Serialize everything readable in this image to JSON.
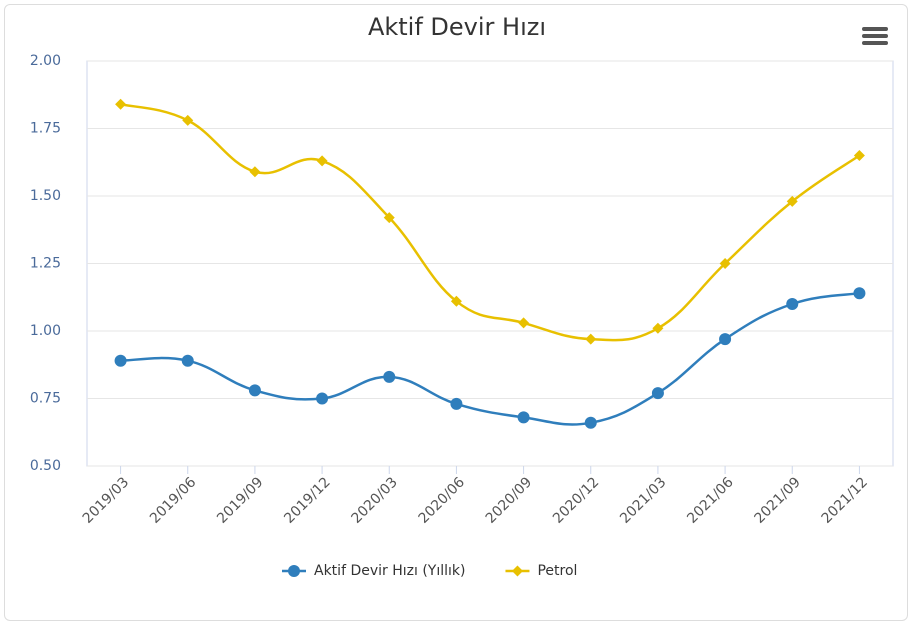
{
  "chart_data": {
    "type": "line",
    "title": "Aktif Devir Hızı",
    "categories": [
      "2019/03",
      "2019/06",
      "2019/09",
      "2019/12",
      "2020/03",
      "2020/06",
      "2020/09",
      "2020/12",
      "2021/03",
      "2021/06",
      "2021/09",
      "2021/12"
    ],
    "series": [
      {
        "name": "Aktif Devir Hızı (Yıllık)",
        "color": "#2f7ebc",
        "values": [
          0.89,
          0.89,
          0.78,
          0.75,
          0.83,
          0.73,
          0.68,
          0.66,
          0.77,
          0.97,
          1.1,
          1.14
        ]
      },
      {
        "name": "Petrol",
        "color": "#e8c000",
        "values": [
          1.84,
          1.78,
          1.59,
          1.63,
          1.42,
          1.11,
          1.03,
          0.97,
          1.01,
          1.25,
          1.48,
          1.65
        ]
      }
    ],
    "ylim": [
      0.5,
      2.0
    ],
    "yticks": [
      {
        "value": 0.5,
        "label": "0.50"
      },
      {
        "value": 0.75,
        "label": "0.75"
      },
      {
        "value": 1.0,
        "label": "1.00"
      },
      {
        "value": 1.25,
        "label": "1.25"
      },
      {
        "value": 1.5,
        "label": "1.50"
      },
      {
        "value": 1.75,
        "label": "1.75"
      },
      {
        "value": 2.0,
        "label": "2.00"
      }
    ],
    "grid": true,
    "legend": "bottom"
  }
}
